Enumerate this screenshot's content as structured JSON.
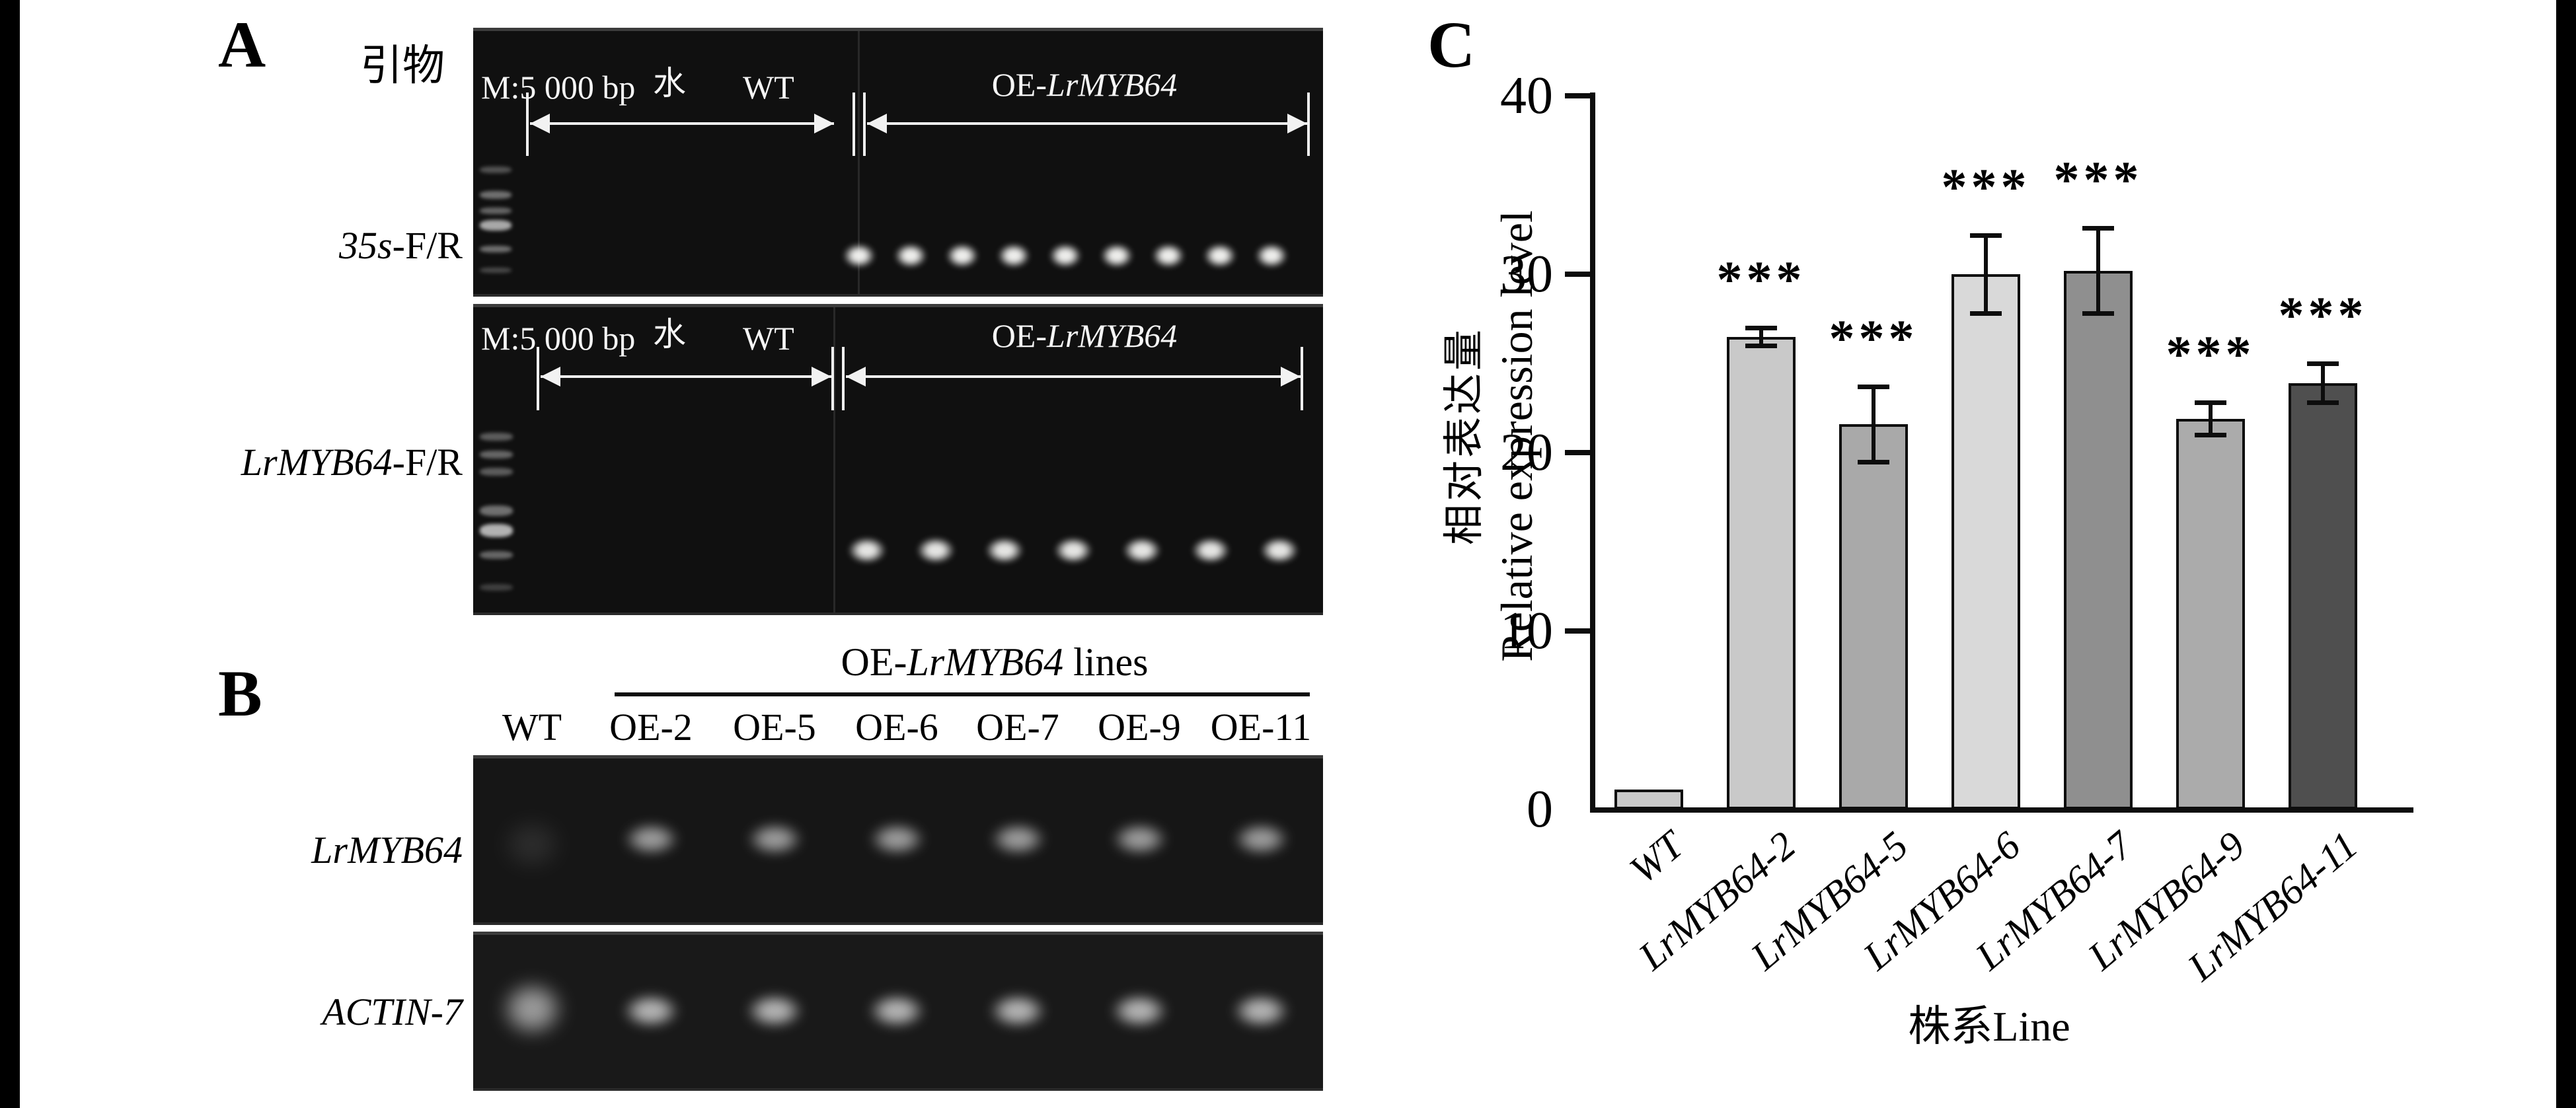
{
  "panel_a": {
    "label": "A",
    "primers_label": "引物",
    "gel_header": {
      "marker": "M:5 000 bp",
      "water": "水",
      "wt": "WT",
      "oe_prefix": "OE-",
      "oe_gene": "LrMYB64"
    },
    "gel1": {
      "row_label_italic": "35s",
      "row_label_rest": "-F/R",
      "band_count": 9
    },
    "gel2": {
      "row_label_italic": "LrMYB64",
      "row_label_rest": "-F/R",
      "band_count": 7
    }
  },
  "panel_b": {
    "label": "B",
    "header": {
      "prefix": "OE-",
      "gene": "LrMYB64",
      "suffix": " lines"
    },
    "lanes": [
      "WT",
      "OE-2",
      "OE-5",
      "OE-6",
      "OE-7",
      "OE-9",
      "OE-11"
    ],
    "row1_label": "LrMYB64",
    "row2_label": "ACTIN-7"
  },
  "panel_c": {
    "label": "C"
  },
  "chart_data": {
    "type": "bar",
    "title": "",
    "categories": [
      "WT",
      "LrMYB64-2",
      "LrMYB64-5",
      "LrMYB64-6",
      "LrMYB64-7",
      "LrMYB64-9",
      "LrMYB64-11"
    ],
    "values": [
      1.1,
      26.5,
      21.6,
      30.0,
      30.2,
      21.9,
      23.9
    ],
    "errors": [
      0,
      0.5,
      2.1,
      2.2,
      2.4,
      0.9,
      1.1
    ],
    "significance": [
      "",
      "***",
      "***",
      "***",
      "***",
      "***",
      "***"
    ],
    "bar_colors": [
      "#c9c9c9",
      "#c9c9c9",
      "#a9a9a9",
      "#d9d9d9",
      "#8f8f8f",
      "#ababab",
      "#4f4f4f"
    ],
    "ylabel_zh": "相对表达量",
    "ylabel_en": "Relative expression level",
    "xlabel": "株系Line",
    "yticks": [
      0,
      10,
      20,
      30,
      40
    ],
    "ylim": [
      0,
      40
    ],
    "grid": false,
    "legend": null,
    "axis_color": "#0d0d0d"
  }
}
